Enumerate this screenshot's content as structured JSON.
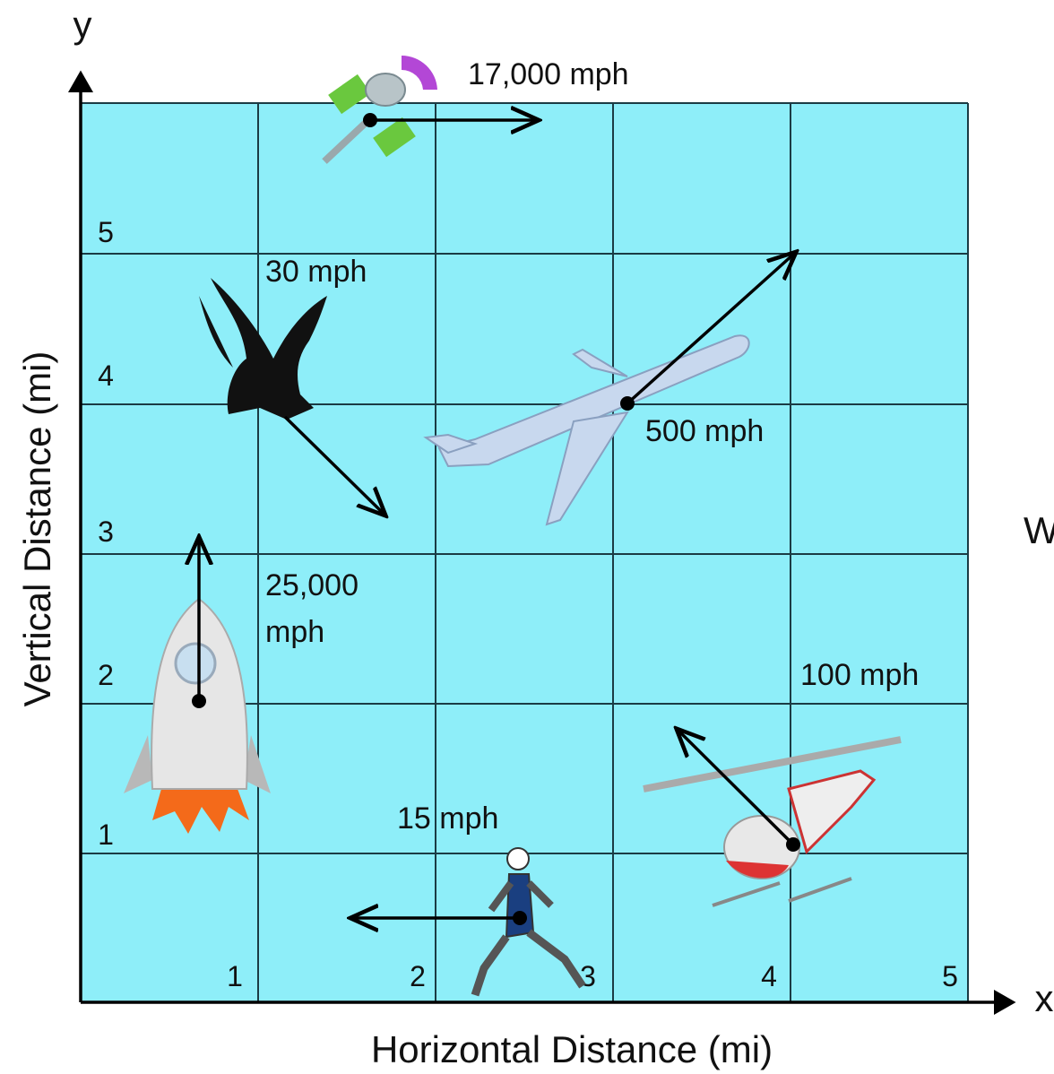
{
  "axes": {
    "x_label": "x",
    "y_label": "y",
    "x_title": "Horizontal Distance (mi)",
    "y_title": "Vertical Distance (mi)",
    "x_ticks": [
      "1",
      "2",
      "3",
      "4",
      "5"
    ],
    "y_ticks": [
      "1",
      "2",
      "3",
      "4",
      "5"
    ]
  },
  "objects": [
    {
      "name": "satellite",
      "speed": "17,000 mph"
    },
    {
      "name": "eagle",
      "speed": "30 mph"
    },
    {
      "name": "airplane",
      "speed": "500 mph"
    },
    {
      "name": "rocket",
      "speed_lines": [
        "25,000",
        "mph"
      ]
    },
    {
      "name": "helicopter",
      "speed": "100 mph"
    },
    {
      "name": "runner",
      "speed": "15 mph"
    }
  ],
  "side_text": "W"
}
